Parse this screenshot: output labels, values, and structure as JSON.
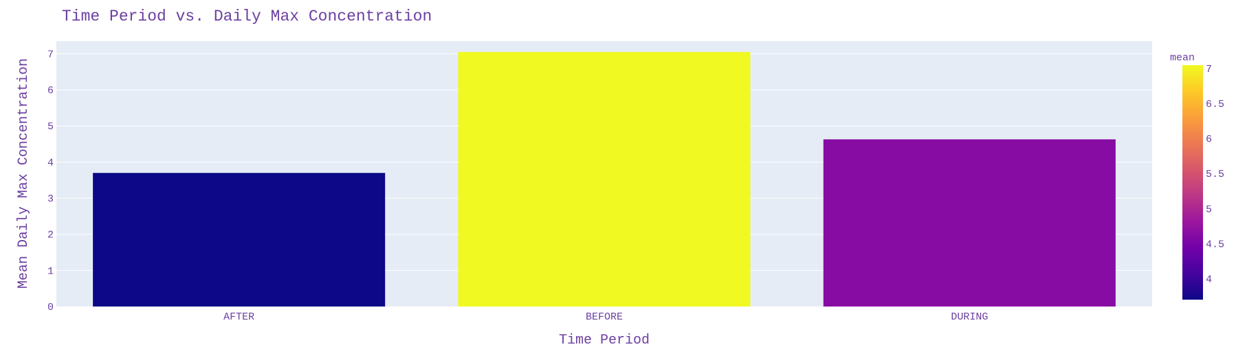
{
  "chart_data": {
    "type": "bar",
    "title": "Time Period vs. Daily Max Concentration",
    "xlabel": "Time Period",
    "ylabel": "Mean Daily Max Concentration",
    "categories": [
      "AFTER",
      "BEFORE",
      "DURING"
    ],
    "values": [
      3.7,
      7.05,
      4.63
    ],
    "ylim": [
      0,
      7.35
    ],
    "yticks": [
      0,
      1,
      2,
      3,
      4,
      5,
      6,
      7
    ],
    "grid": true,
    "colorbar": {
      "title": "mean",
      "range": [
        3.7,
        7.05
      ],
      "ticks": [
        "4",
        "4.5",
        "5",
        "5.5",
        "6",
        "6.5",
        "7"
      ],
      "tick_values": [
        4,
        4.5,
        5,
        5.5,
        6,
        6.5,
        7
      ],
      "colorscale": [
        "#0d0887",
        "#46039f",
        "#7201a8",
        "#9c179e",
        "#bd3786",
        "#d8576b",
        "#ed7953",
        "#fb9f3a",
        "#fdca26",
        "#f0f921"
      ]
    },
    "colors": {
      "plot_bg": "#e5ecf6",
      "grid": "#ffffff",
      "text": "#6b3fa0"
    }
  }
}
